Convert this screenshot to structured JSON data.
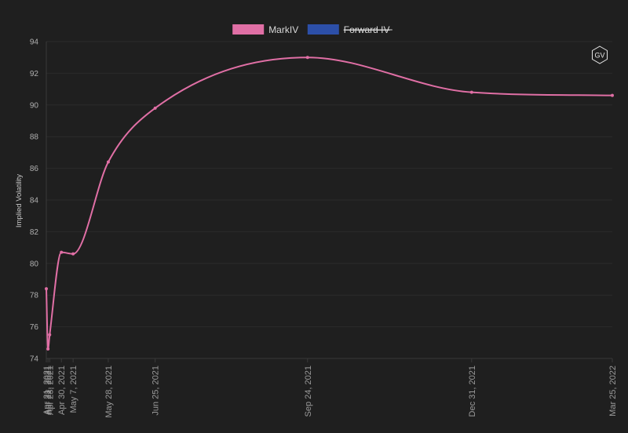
{
  "chart_data": {
    "type": "line",
    "title": "",
    "xlabel": "",
    "ylabel": "Implied Volatility",
    "ylim": [
      74,
      94
    ],
    "yticks": [
      74,
      76,
      78,
      80,
      82,
      84,
      86,
      88,
      90,
      92,
      94
    ],
    "x_dates": [
      "2021-04-21",
      "2021-04-22",
      "2021-04-23",
      "2021-04-30",
      "2021-05-07",
      "2021-05-28",
      "2021-06-25",
      "2021-09-24",
      "2021-12-31",
      "2022-03-25"
    ],
    "x_labels": [
      "Apr 21, 2021",
      "Apr 22, 2021",
      "Apr 23, 2021",
      "Apr 30, 2021",
      "May 7, 2021",
      "May 28, 2021",
      "Jun 25, 2021",
      "Sep 24, 2021",
      "Dec 31, 2021",
      "Mar 25, 2022"
    ],
    "legend": {
      "placement": "top-center"
    },
    "series": [
      {
        "name": "MarkIV",
        "color": "#e06fa5",
        "hidden": false,
        "values": [
          78.4,
          74.6,
          75.5,
          80.7,
          80.6,
          86.4,
          89.8,
          93.0,
          90.8,
          90.6
        ]
      },
      {
        "name": "Forward IV",
        "color": "#2c4fa8",
        "hidden": true,
        "values": []
      }
    ]
  },
  "badge": {
    "text": "GV"
  }
}
